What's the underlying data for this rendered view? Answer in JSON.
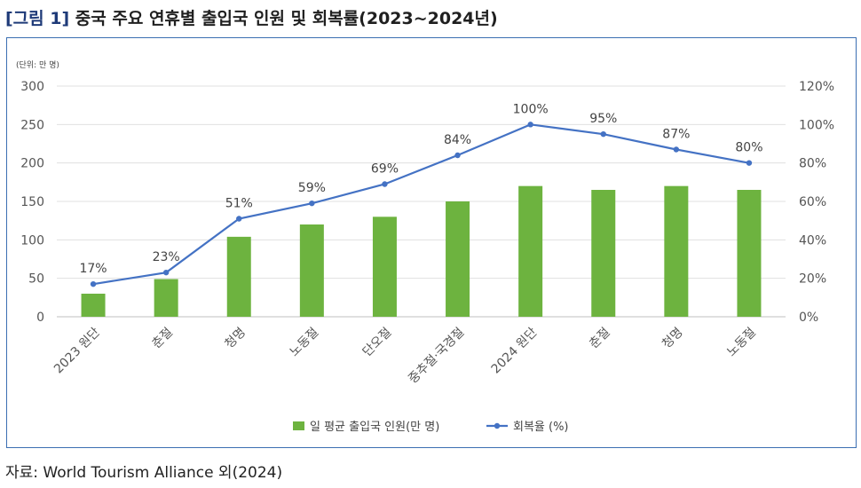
{
  "figure": {
    "label": "[그림 1]",
    "title": "중국 주요 연휴별 출입국 인원 및 회복률(2023~2024년)",
    "unit_note": "(단위: 만 명)",
    "source": "자료: World Tourism Alliance 외(2024)"
  },
  "chart_data": {
    "type": "bar",
    "categories": [
      "2023 원단",
      "춘절",
      "청명",
      "노동절",
      "단오절",
      "중추절·국경절",
      "2024 원단",
      "춘절",
      "청명",
      "노동절"
    ],
    "series": [
      {
        "name": "일 평균 출입국 인원(만 명)",
        "type": "bar",
        "axis": "left",
        "color": "#6db33f",
        "values": [
          30,
          49,
          104,
          120,
          130,
          150,
          170,
          165,
          170,
          165
        ]
      },
      {
        "name": "회복율 (%)",
        "type": "line",
        "axis": "right",
        "color": "#4472c4",
        "values": [
          17,
          23,
          51,
          59,
          69,
          84,
          100,
          95,
          87,
          80
        ],
        "data_labels": [
          "17%",
          "23%",
          "51%",
          "59%",
          "69%",
          "84%",
          "100%",
          "95%",
          "87%",
          "80%"
        ]
      }
    ],
    "y_left": {
      "ylim": [
        0,
        300
      ],
      "ticks": [
        "0",
        "50",
        "100",
        "150",
        "200",
        "250",
        "300"
      ]
    },
    "y_right": {
      "ylim": [
        0,
        120
      ],
      "ticks": [
        "0%",
        "20%",
        "40%",
        "60%",
        "80%",
        "100%",
        "120%"
      ]
    },
    "grid": true,
    "legend_position": "bottom"
  }
}
